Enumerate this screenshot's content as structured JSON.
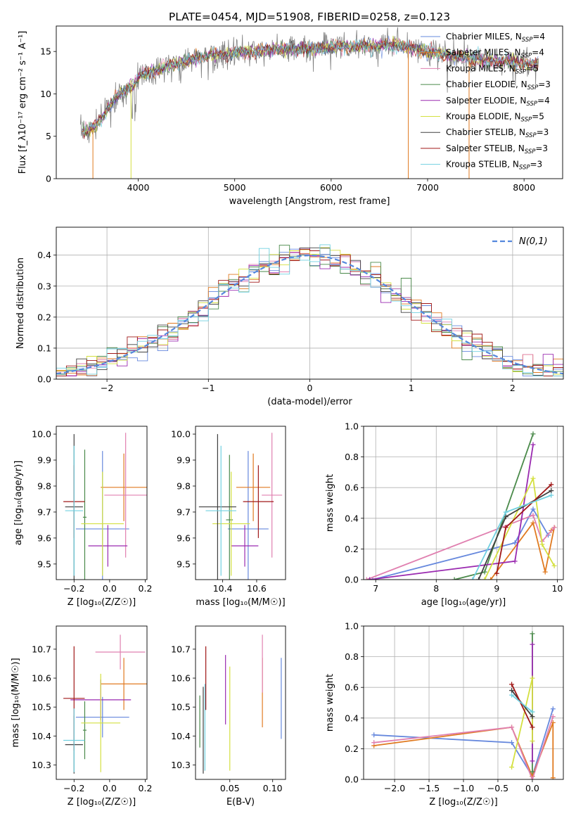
{
  "figure_title": "PLATE=0454, MJD=51908, FIBERID=0258, z=0.123",
  "palette": [
    "#6688dd",
    "#e07a20",
    "#e080b0",
    "#4a8a4a",
    "#9a2ab0",
    "#d4e040",
    "#404040",
    "#a01818",
    "#70d0e0"
  ],
  "chart_data": [
    {
      "id": "spectrum",
      "type": "line",
      "xlabel": "wavelength [Angstrom, rest frame]",
      "ylabel": "Flux [f_λ10⁻¹⁷ erg cm⁻² s⁻¹ A⁻¹]",
      "xlim": [
        3150,
        8400
      ],
      "ylim": [
        0,
        18
      ],
      "xticks": [
        4000,
        5000,
        6000,
        7000,
        8000
      ],
      "yticks": [
        0,
        5,
        10,
        15
      ],
      "legend_position": "top-right",
      "series": [
        {
          "name": "Chabrier MILES, N_SSP=4",
          "color": "#6688dd"
        },
        {
          "name": "Salpeter MILES, N_SSP=4",
          "color": "#e07a20"
        },
        {
          "name": "Kroupa MILES, N_SSP=5",
          "color": "#e080b0"
        },
        {
          "name": "Chabrier ELODIE, N_SSP=3",
          "color": "#4a8a4a"
        },
        {
          "name": "Salpeter ELODIE, N_SSP=4",
          "color": "#9a2ab0"
        },
        {
          "name": "Kroupa ELODIE, N_SSP=5",
          "color": "#d4e040"
        },
        {
          "name": "Chabrier STELIB, N_SSP=3",
          "color": "#404040"
        },
        {
          "name": "Salpeter STELIB, N_SSP=3",
          "color": "#a01818"
        },
        {
          "name": "Kroupa STELIB, N_SSP=3",
          "color": "#70d0e0"
        }
      ],
      "continuum": {
        "x": [
          3400,
          3550,
          3700,
          3800,
          3950,
          4000,
          4200,
          4400,
          4600,
          4800,
          5000,
          5200,
          5400,
          5600,
          5800,
          6000,
          6200,
          6400,
          6600,
          6800,
          7000,
          7200,
          7400,
          7600,
          7800,
          8000,
          8150
        ],
        "y": [
          5.5,
          6.0,
          8.5,
          10.0,
          11.0,
          12.0,
          12.8,
          13.6,
          14.2,
          14.6,
          14.8,
          15.0,
          15.2,
          15.3,
          15.3,
          15.5,
          15.6,
          15.7,
          15.8,
          15.5,
          15.0,
          14.6,
          14.3,
          14.0,
          13.8,
          13.6,
          13.5
        ]
      }
    },
    {
      "id": "residuals",
      "type": "histogram",
      "xlabel": "(data-model)/error",
      "ylabel": "Normed distribution",
      "xlim": [
        -2.5,
        2.5
      ],
      "ylim": [
        0,
        0.49
      ],
      "xticks": [
        -2,
        -1,
        0,
        1,
        2
      ],
      "yticks": [
        0.0,
        0.1,
        0.2,
        0.3,
        0.4
      ],
      "grid": true,
      "legend_position": "top-right",
      "reference_curve": {
        "name": "N(0,1)",
        "color": "#5588dd"
      },
      "bins": {
        "start": -2.5,
        "width": 0.1,
        "count": 50
      }
    },
    {
      "id": "age-vs-z",
      "type": "errorbar",
      "xlabel": "Z [log₁₀(Z/Z☉)]",
      "ylabel": "age  [log₁₀(age/yr)]",
      "xlim": [
        -0.3,
        0.21
      ],
      "ylim": [
        9.44,
        10.03
      ],
      "xticks": [
        -0.2,
        0.0,
        0.2
      ],
      "yticks": [
        9.5,
        9.6,
        9.7,
        9.8,
        9.9,
        10.0
      ],
      "points": [
        {
          "x": -0.04,
          "y": 9.635,
          "xerr": 0.15,
          "yerr": 0.3,
          "color": "#6688dd"
        },
        {
          "x": 0.08,
          "y": 9.795,
          "xerr": 0.13,
          "yerr": 0.13,
          "color": "#e07a20"
        },
        {
          "x": 0.09,
          "y": 9.765,
          "xerr": 0.12,
          "yerr": 0.24,
          "color": "#e080b0"
        },
        {
          "x": -0.14,
          "y": 9.68,
          "xerr": 0.01,
          "yerr": 0.26,
          "color": "#4a8a4a"
        },
        {
          "x": -0.01,
          "y": 9.57,
          "xerr": 0.11,
          "yerr": 0.08,
          "color": "#9a2ab0"
        },
        {
          "x": -0.04,
          "y": 9.655,
          "xerr": 0.12,
          "yerr": 0.2,
          "color": "#d4e040"
        },
        {
          "x": -0.2,
          "y": 9.72,
          "xerr": 0.05,
          "yerr": 0.28,
          "color": "#404040"
        },
        {
          "x": -0.2,
          "y": 9.74,
          "xerr": 0.06,
          "yerr": 0.14,
          "color": "#a01818"
        },
        {
          "x": -0.2,
          "y": 9.705,
          "xerr": 0.05,
          "yerr": 0.25,
          "color": "#70d0e0"
        }
      ]
    },
    {
      "id": "age-vs-mass",
      "type": "errorbar",
      "xlabel": "mass [log₁₀(M/M☉)]",
      "ylabel": "",
      "xlim": [
        10.24,
        10.77
      ],
      "ylim": [
        9.44,
        10.03
      ],
      "xticks": [
        10.4,
        10.6
      ],
      "yticks": [
        9.5,
        9.6,
        9.7,
        9.8,
        9.9,
        10.0
      ],
      "points": [
        {
          "x": 10.55,
          "y": 9.635,
          "xerr": 0.12,
          "yerr": 0.3,
          "color": "#6688dd"
        },
        {
          "x": 10.58,
          "y": 9.795,
          "xerr": 0.1,
          "yerr": 0.13,
          "color": "#e07a20"
        },
        {
          "x": 10.69,
          "y": 9.765,
          "xerr": 0.06,
          "yerr": 0.24,
          "color": "#e080b0"
        },
        {
          "x": 10.44,
          "y": 9.67,
          "xerr": 0.02,
          "yerr": 0.25,
          "color": "#4a8a4a"
        },
        {
          "x": 10.53,
          "y": 9.57,
          "xerr": 0.08,
          "yerr": 0.08,
          "color": "#9a2ab0"
        },
        {
          "x": 10.45,
          "y": 9.655,
          "xerr": 0.11,
          "yerr": 0.2,
          "color": "#d4e040"
        },
        {
          "x": 10.37,
          "y": 9.72,
          "xerr": 0.11,
          "yerr": 0.28,
          "color": "#404040"
        },
        {
          "x": 10.61,
          "y": 9.74,
          "xerr": 0.09,
          "yerr": 0.14,
          "color": "#a01818"
        },
        {
          "x": 10.39,
          "y": 9.705,
          "xerr": 0.09,
          "yerr": 0.25,
          "color": "#70d0e0"
        }
      ]
    },
    {
      "id": "mass-weight-vs-age",
      "type": "line",
      "xlabel": "age  [log₁₀(age/yr)]",
      "ylabel": "mass weight",
      "xlim": [
        6.8,
        10.1
      ],
      "ylim": [
        0,
        1.0
      ],
      "xticks": [
        7,
        8,
        9,
        10
      ],
      "yticks": [
        0.0,
        0.2,
        0.4,
        0.6,
        0.8,
        1.0
      ],
      "grid": true,
      "series": [
        {
          "color": "#6688dd",
          "x": [
            6.95,
            9.3,
            9.6,
            9.85
          ],
          "y": [
            0.0,
            0.24,
            0.46,
            0.29
          ]
        },
        {
          "color": "#e07a20",
          "x": [
            8.9,
            9.6,
            9.8,
            9.95,
            9.9
          ],
          "y": [
            0.0,
            0.37,
            0.05,
            0.34,
            0.32
          ]
        },
        {
          "color": "#e080b0",
          "x": [
            6.85,
            9.6,
            9.75,
            9.95
          ],
          "y": [
            0.0,
            0.42,
            0.25,
            0.34
          ]
        },
        {
          "color": "#4a8a4a",
          "x": [
            8.3,
            8.8,
            9.6
          ],
          "y": [
            0.0,
            0.05,
            0.95
          ]
        },
        {
          "color": "#9a2ab0",
          "x": [
            6.9,
            9.3,
            9.6
          ],
          "y": [
            0.0,
            0.12,
            0.88
          ]
        },
        {
          "color": "#d4e040",
          "x": [
            8.8,
            9.6,
            9.75,
            9.95
          ],
          "y": [
            0.0,
            0.66,
            0.23,
            0.09
          ]
        },
        {
          "color": "#404040",
          "x": [
            8.7,
            9.15,
            9.9
          ],
          "y": [
            0.0,
            0.41,
            0.58
          ]
        },
        {
          "color": "#a01818",
          "x": [
            9.0,
            9.15,
            9.9
          ],
          "y": [
            0.04,
            0.34,
            0.62
          ]
        },
        {
          "color": "#70d0e0",
          "x": [
            8.6,
            9.15,
            9.9
          ],
          "y": [
            0.0,
            0.44,
            0.55
          ]
        }
      ]
    },
    {
      "id": "mass-vs-z",
      "type": "errorbar",
      "xlabel": "Z [log₁₀(Z/Z☉)]",
      "ylabel": "mass [log₁₀(M/M☉)]",
      "xlim": [
        -0.3,
        0.21
      ],
      "ylim": [
        10.25,
        10.78
      ],
      "xticks": [
        -0.2,
        0.0,
        0.2
      ],
      "yticks": [
        10.3,
        10.4,
        10.5,
        10.6,
        10.7
      ],
      "points": [
        {
          "x": -0.04,
          "y": 10.465,
          "xerr": 0.15,
          "yerr": 0.07,
          "color": "#6688dd"
        },
        {
          "x": 0.08,
          "y": 10.58,
          "xerr": 0.13,
          "yerr": 0.09,
          "color": "#e07a20"
        },
        {
          "x": 0.06,
          "y": 10.69,
          "xerr": 0.14,
          "yerr": 0.06,
          "color": "#e080b0"
        },
        {
          "x": -0.14,
          "y": 10.42,
          "xerr": 0.01,
          "yerr": 0.1,
          "color": "#4a8a4a"
        },
        {
          "x": -0.05,
          "y": 10.525,
          "xerr": 0.17,
          "yerr": 0.07,
          "color": "#9a2ab0"
        },
        {
          "x": -0.05,
          "y": 10.445,
          "xerr": 0.11,
          "yerr": 0.17,
          "color": "#d4e040"
        },
        {
          "x": -0.2,
          "y": 10.37,
          "xerr": 0.05,
          "yerr": 0.1,
          "color": "#404040"
        },
        {
          "x": -0.2,
          "y": 10.53,
          "xerr": 0.06,
          "yerr": 0.18,
          "color": "#a01818"
        },
        {
          "x": -0.2,
          "y": 10.385,
          "xerr": 0.06,
          "yerr": 0.11,
          "color": "#70d0e0"
        }
      ]
    },
    {
      "id": "mass-vs-ebv",
      "type": "errorbar",
      "xlabel": "E(B-V)",
      "ylabel": "",
      "xlim": [
        0.01,
        0.115
      ],
      "ylim": [
        10.25,
        10.78
      ],
      "xticks": [
        0.05,
        0.1
      ],
      "yticks": [
        10.3,
        10.4,
        10.5,
        10.6,
        10.7
      ],
      "points": [
        {
          "x": 0.11,
          "y": 10.53,
          "xerr": 0,
          "yerr": 0.14,
          "color": "#6688dd"
        },
        {
          "x": 0.088,
          "y": 10.55,
          "xerr": 0,
          "yerr": 0.12,
          "color": "#e07a20"
        },
        {
          "x": 0.088,
          "y": 10.65,
          "xerr": 0,
          "yerr": 0.1,
          "color": "#e080b0"
        },
        {
          "x": 0.015,
          "y": 10.45,
          "xerr": 0,
          "yerr": 0.09,
          "color": "#4a8a4a"
        },
        {
          "x": 0.045,
          "y": 10.56,
          "xerr": 0,
          "yerr": 0.12,
          "color": "#9a2ab0"
        },
        {
          "x": 0.05,
          "y": 10.46,
          "xerr": 0,
          "yerr": 0.18,
          "color": "#d4e040"
        },
        {
          "x": 0.019,
          "y": 10.42,
          "xerr": 0,
          "yerr": 0.15,
          "color": "#404040"
        },
        {
          "x": 0.022,
          "y": 10.6,
          "xerr": 0,
          "yerr": 0.11,
          "color": "#a01818"
        },
        {
          "x": 0.021,
          "y": 10.43,
          "xerr": 0,
          "yerr": 0.15,
          "color": "#70d0e0"
        }
      ]
    },
    {
      "id": "mass-weight-vs-z",
      "type": "line",
      "xlabel": "Z [log₁₀(Z/Z☉)]",
      "ylabel": "mass weight",
      "xlim": [
        -2.45,
        0.45
      ],
      "ylim": [
        0,
        1.0
      ],
      "xticks": [
        -2.0,
        -1.5,
        -1.0,
        -0.5,
        0.0
      ],
      "yticks": [
        0.0,
        0.2,
        0.4,
        0.6,
        0.8,
        1.0
      ],
      "grid": true,
      "series": [
        {
          "color": "#6688dd",
          "x": [
            -2.3,
            -0.3,
            0.0,
            0.3
          ],
          "y": [
            0.29,
            0.24,
            0.02,
            0.46
          ]
        },
        {
          "color": "#e07a20",
          "x": [
            -2.3,
            -0.3,
            0.0,
            0.3,
            0.3
          ],
          "y": [
            0.22,
            0.34,
            0.02,
            0.37,
            0.01
          ]
        },
        {
          "color": "#e080b0",
          "x": [
            -2.3,
            -0.3,
            0.0,
            0.3
          ],
          "y": [
            0.24,
            0.34,
            0.0,
            0.41
          ]
        },
        {
          "color": "#4a8a4a",
          "x": [
            0.0,
            0.0
          ],
          "y": [
            0.05,
            0.95
          ]
        },
        {
          "color": "#9a2ab0",
          "x": [
            0.0,
            0.0
          ],
          "y": [
            0.12,
            0.88
          ]
        },
        {
          "color": "#d4e040",
          "x": [
            -0.3,
            0.0,
            0.0
          ],
          "y": [
            0.08,
            0.66,
            0.25
          ]
        },
        {
          "color": "#404040",
          "x": [
            -0.3,
            0.0
          ],
          "y": [
            0.58,
            0.41
          ]
        },
        {
          "color": "#a01818",
          "x": [
            -0.3,
            0.0
          ],
          "y": [
            0.62,
            0.34
          ]
        },
        {
          "color": "#70d0e0",
          "x": [
            -0.3,
            0.0
          ],
          "y": [
            0.55,
            0.44
          ]
        }
      ]
    }
  ]
}
